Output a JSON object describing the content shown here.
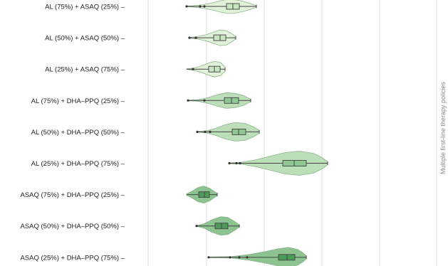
{
  "chart_data": {
    "type": "violin",
    "facet_label": "Multiple first-line therapy policies",
    "grid": true,
    "colors": {
      "fill": [
        "#dff0d8",
        "#dff0d8",
        "#dff0d8",
        "#b8dcb5",
        "#b8dcb5",
        "#b8dcb5",
        "#86c08a",
        "#86c08a",
        "#86c08a"
      ],
      "box": [
        "#c8e4c0",
        "#c8e4c0",
        "#c8e4c0",
        "#8fc793",
        "#8fc793",
        "#8fc793",
        "#4e9a5a",
        "#4e9a5a",
        "#4e9a5a"
      ],
      "stroke": "#444444",
      "grid": "#dddddd"
    },
    "categories": [
      {
        "label": "AL (75%) + ASAQ (25%) –",
        "whisker": [
          262,
          360
        ],
        "box": [
          318,
          336
        ],
        "median": 327,
        "violin": [
          [
            262,
            0.5
          ],
          [
            272,
            1
          ],
          [
            285,
            2.5
          ],
          [
            298,
            5
          ],
          [
            310,
            8
          ],
          [
            320,
            10
          ],
          [
            330,
            9.5
          ],
          [
            342,
            7
          ],
          [
            352,
            4
          ],
          [
            360,
            1
          ]
        ],
        "outliers": [
          262,
          281,
          287
        ]
      },
      {
        "label": "AL (50%) + ASAQ (50%) –",
        "whisker": [
          265,
          331
        ],
        "box": [
          300,
          317
        ],
        "median": 309,
        "violin": [
          [
            265,
            0.5
          ],
          [
            276,
            1.5
          ],
          [
            290,
            4.5
          ],
          [
            300,
            8
          ],
          [
            309,
            11
          ],
          [
            318,
            10
          ],
          [
            325,
            6
          ],
          [
            331,
            1.5
          ]
        ],
        "outliers": [
          266,
          275
        ]
      },
      {
        "label": "AL (25%) + ASAQ (75%) –",
        "whisker": [
          262,
          316
        ],
        "box": [
          293,
          309
        ],
        "median": 301,
        "violin": [
          [
            262,
            0.5
          ],
          [
            272,
            1.5
          ],
          [
            284,
            5
          ],
          [
            294,
            9
          ],
          [
            302,
            11
          ],
          [
            310,
            9
          ],
          [
            316,
            3
          ]
        ],
        "outliers": [
          271
        ]
      },
      {
        "label": "AL (75%) + DHA–PPQ (25%) –",
        "whisker": [
          264,
          352
        ],
        "box": [
          315,
          335
        ],
        "median": 325,
        "violin": [
          [
            264,
            0.5
          ],
          [
            278,
            1
          ],
          [
            292,
            4
          ],
          [
            305,
            8
          ],
          [
            318,
            11
          ],
          [
            330,
            10
          ],
          [
            342,
            7
          ],
          [
            352,
            1.5
          ]
        ],
        "outliers": [
          264,
          287
        ]
      },
      {
        "label": "AL (50%) + DHA–PPQ (50%) –",
        "whisker": [
          277,
          364
        ],
        "box": [
          326,
          345
        ],
        "median": 335,
        "violin": [
          [
            277,
            0.5
          ],
          [
            290,
            1.5
          ],
          [
            303,
            5
          ],
          [
            316,
            10
          ],
          [
            330,
            13
          ],
          [
            344,
            12
          ],
          [
            356,
            7
          ],
          [
            364,
            2
          ]
        ],
        "outliers": [
          277,
          288,
          295
        ]
      },
      {
        "label": "AL (25%) + DHA–PPQ (75%) –",
        "whisker": [
          322,
          460
        ],
        "box": [
          397,
          430
        ],
        "median": 413,
        "violin": [
          [
            322,
            0.5
          ],
          [
            340,
            1.5
          ],
          [
            360,
            5
          ],
          [
            380,
            10
          ],
          [
            400,
            15
          ],
          [
            420,
            17
          ],
          [
            440,
            14
          ],
          [
            452,
            8
          ],
          [
            460,
            2
          ]
        ],
        "outliers": [
          322,
          332,
          337
        ]
      },
      {
        "label": "ASAQ (75%) + DHA–PPQ (25%) –",
        "whisker": [
          262,
          305
        ],
        "box": [
          279,
          294
        ],
        "median": 287,
        "violin": [
          [
            262,
            1
          ],
          [
            270,
            5
          ],
          [
            278,
            10
          ],
          [
            286,
            12
          ],
          [
            294,
            9
          ],
          [
            300,
            5
          ],
          [
            305,
            1.5
          ]
        ],
        "outliers": []
      },
      {
        "label": "ASAQ (50%) + DHA–PPQ (50%) –",
        "whisker": [
          276,
          336
        ],
        "box": [
          302,
          320
        ],
        "median": 311,
        "violin": [
          [
            276,
            0.5
          ],
          [
            286,
            3
          ],
          [
            298,
            9
          ],
          [
            310,
            13
          ],
          [
            320,
            12
          ],
          [
            330,
            6
          ],
          [
            336,
            1.5
          ]
        ],
        "outliers": [
          276
        ]
      },
      {
        "label": "ASAQ (25%) + DHA–PPQ (75%) –",
        "whisker": [
          293,
          430
        ],
        "box": [
          391,
          414
        ],
        "median": 403,
        "violin": [
          [
            293,
            0.5
          ],
          [
            325,
            1
          ],
          [
            350,
            4
          ],
          [
            372,
            8
          ],
          [
            390,
            12
          ],
          [
            405,
            14
          ],
          [
            418,
            11
          ],
          [
            426,
            6
          ],
          [
            430,
            2
          ]
        ],
        "outliers": [
          293,
          323,
          336,
          347
        ]
      }
    ]
  }
}
